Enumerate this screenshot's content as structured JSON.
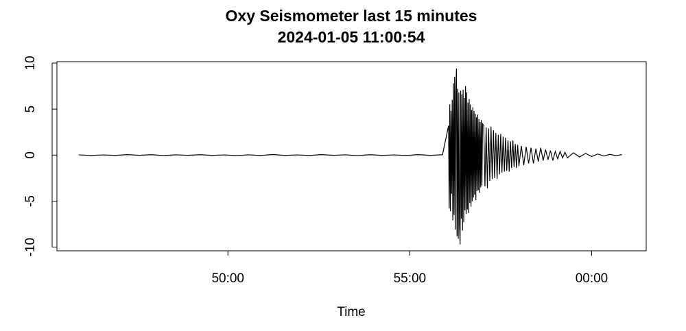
{
  "chart_data": {
    "type": "line",
    "title": "Oxy Seismometer last 15 minutes",
    "subtitle": "2024-01-05 11:00:54",
    "x_label": "Time",
    "color": "#000000",
    "xlim": [
      2718,
      3690
    ],
    "xticks": [
      {
        "value": 3000,
        "label": "50:00"
      },
      {
        "value": 3300,
        "label": "55:00"
      },
      {
        "value": 3600,
        "label": "00:00"
      }
    ],
    "ylim": [
      -10.4,
      10.15
    ],
    "yticks": [
      10,
      5,
      0,
      -5,
      -10
    ],
    "grid": false,
    "x": [
      2754,
      2774,
      2794,
      2814,
      2834,
      2854,
      2874,
      2894,
      2914,
      2934,
      2954,
      2974,
      2994,
      3014,
      3034,
      3054,
      3074,
      3094,
      3114,
      3134,
      3154,
      3174,
      3194,
      3214,
      3234,
      3254,
      3274,
      3294,
      3314,
      3334,
      3354,
      3364,
      3365,
      3366,
      3367,
      3368,
      3369,
      3370,
      3371,
      3372,
      3373,
      3374,
      3375,
      3376,
      3377,
      3378,
      3379,
      3380,
      3381,
      3382,
      3383,
      3384,
      3385,
      3386,
      3387,
      3388,
      3389,
      3390,
      3391,
      3392,
      3393,
      3394,
      3395,
      3396,
      3397,
      3398,
      3399,
      3400,
      3401,
      3402,
      3403,
      3404,
      3405,
      3406,
      3407,
      3408,
      3409,
      3410,
      3411,
      3412,
      3413,
      3414,
      3415,
      3416,
      3417,
      3418,
      3419,
      3420,
      3422,
      3424,
      3426,
      3428,
      3430,
      3432,
      3434,
      3436,
      3438,
      3440,
      3442,
      3444,
      3446,
      3448,
      3450,
      3452,
      3454,
      3456,
      3458,
      3460,
      3462,
      3464,
      3466,
      3468,
      3470,
      3472,
      3474,
      3476,
      3478,
      3480,
      3484,
      3488,
      3492,
      3496,
      3500,
      3504,
      3508,
      3512,
      3516,
      3520,
      3524,
      3528,
      3532,
      3536,
      3540,
      3544,
      3548,
      3552,
      3556,
      3560,
      3570,
      3580,
      3590,
      3600,
      3610,
      3620,
      3630,
      3640,
      3650
    ],
    "values": [
      0.03,
      -0.04,
      0.02,
      -0.03,
      0.05,
      -0.02,
      0.04,
      -0.05,
      0.03,
      -0.02,
      0.04,
      -0.03,
      0.02,
      -0.05,
      0.03,
      -0.04,
      0.06,
      -0.03,
      0.02,
      -0.04,
      0.05,
      -0.02,
      0.03,
      -0.06,
      0.04,
      -0.03,
      0.02,
      -0.04,
      0.05,
      -0.03,
      0.04,
      3.2,
      -5.8,
      5.5,
      -6.1,
      4.8,
      -4.2,
      6.0,
      -7.1,
      7.8,
      -6.5,
      8.5,
      -8.1,
      6.9,
      9.4,
      -8.8,
      7.2,
      -9.1,
      6.8,
      -7.6,
      -9.7,
      7.0,
      -6.9,
      6.6,
      -8.2,
      7.1,
      -7.3,
      6.2,
      -6.0,
      7.5,
      -6.4,
      6.8,
      -5.9,
      5.7,
      -6.3,
      6.1,
      -5.2,
      5.5,
      -5.6,
      4.9,
      -5.0,
      5.2,
      -4.6,
      4.8,
      -4.3,
      4.5,
      -4.9,
      4.1,
      -3.9,
      4.4,
      -3.8,
      3.9,
      -4.1,
      3.6,
      -3.5,
      3.8,
      -3.3,
      3.4,
      3.2,
      -3.4,
      3.0,
      -3.6,
      2.9,
      -2.8,
      3.1,
      -2.6,
      2.7,
      -2.5,
      2.4,
      -2.6,
      2.2,
      -2.1,
      2.3,
      -1.9,
      2.0,
      -1.8,
      1.9,
      -1.7,
      1.6,
      -1.8,
      1.5,
      -1.4,
      1.6,
      -1.3,
      1.2,
      -1.4,
      1.1,
      -1.2,
      1.0,
      -1.1,
      0.9,
      -0.9,
      0.8,
      -0.9,
      0.7,
      -0.7,
      0.8,
      -0.6,
      0.6,
      -0.5,
      0.5,
      -0.6,
      0.4,
      -0.4,
      0.4,
      -0.3,
      0.3,
      -0.3,
      0.25,
      -0.2,
      0.18,
      -0.15,
      0.12,
      -0.1,
      0.08,
      -0.06,
      0.05
    ]
  }
}
